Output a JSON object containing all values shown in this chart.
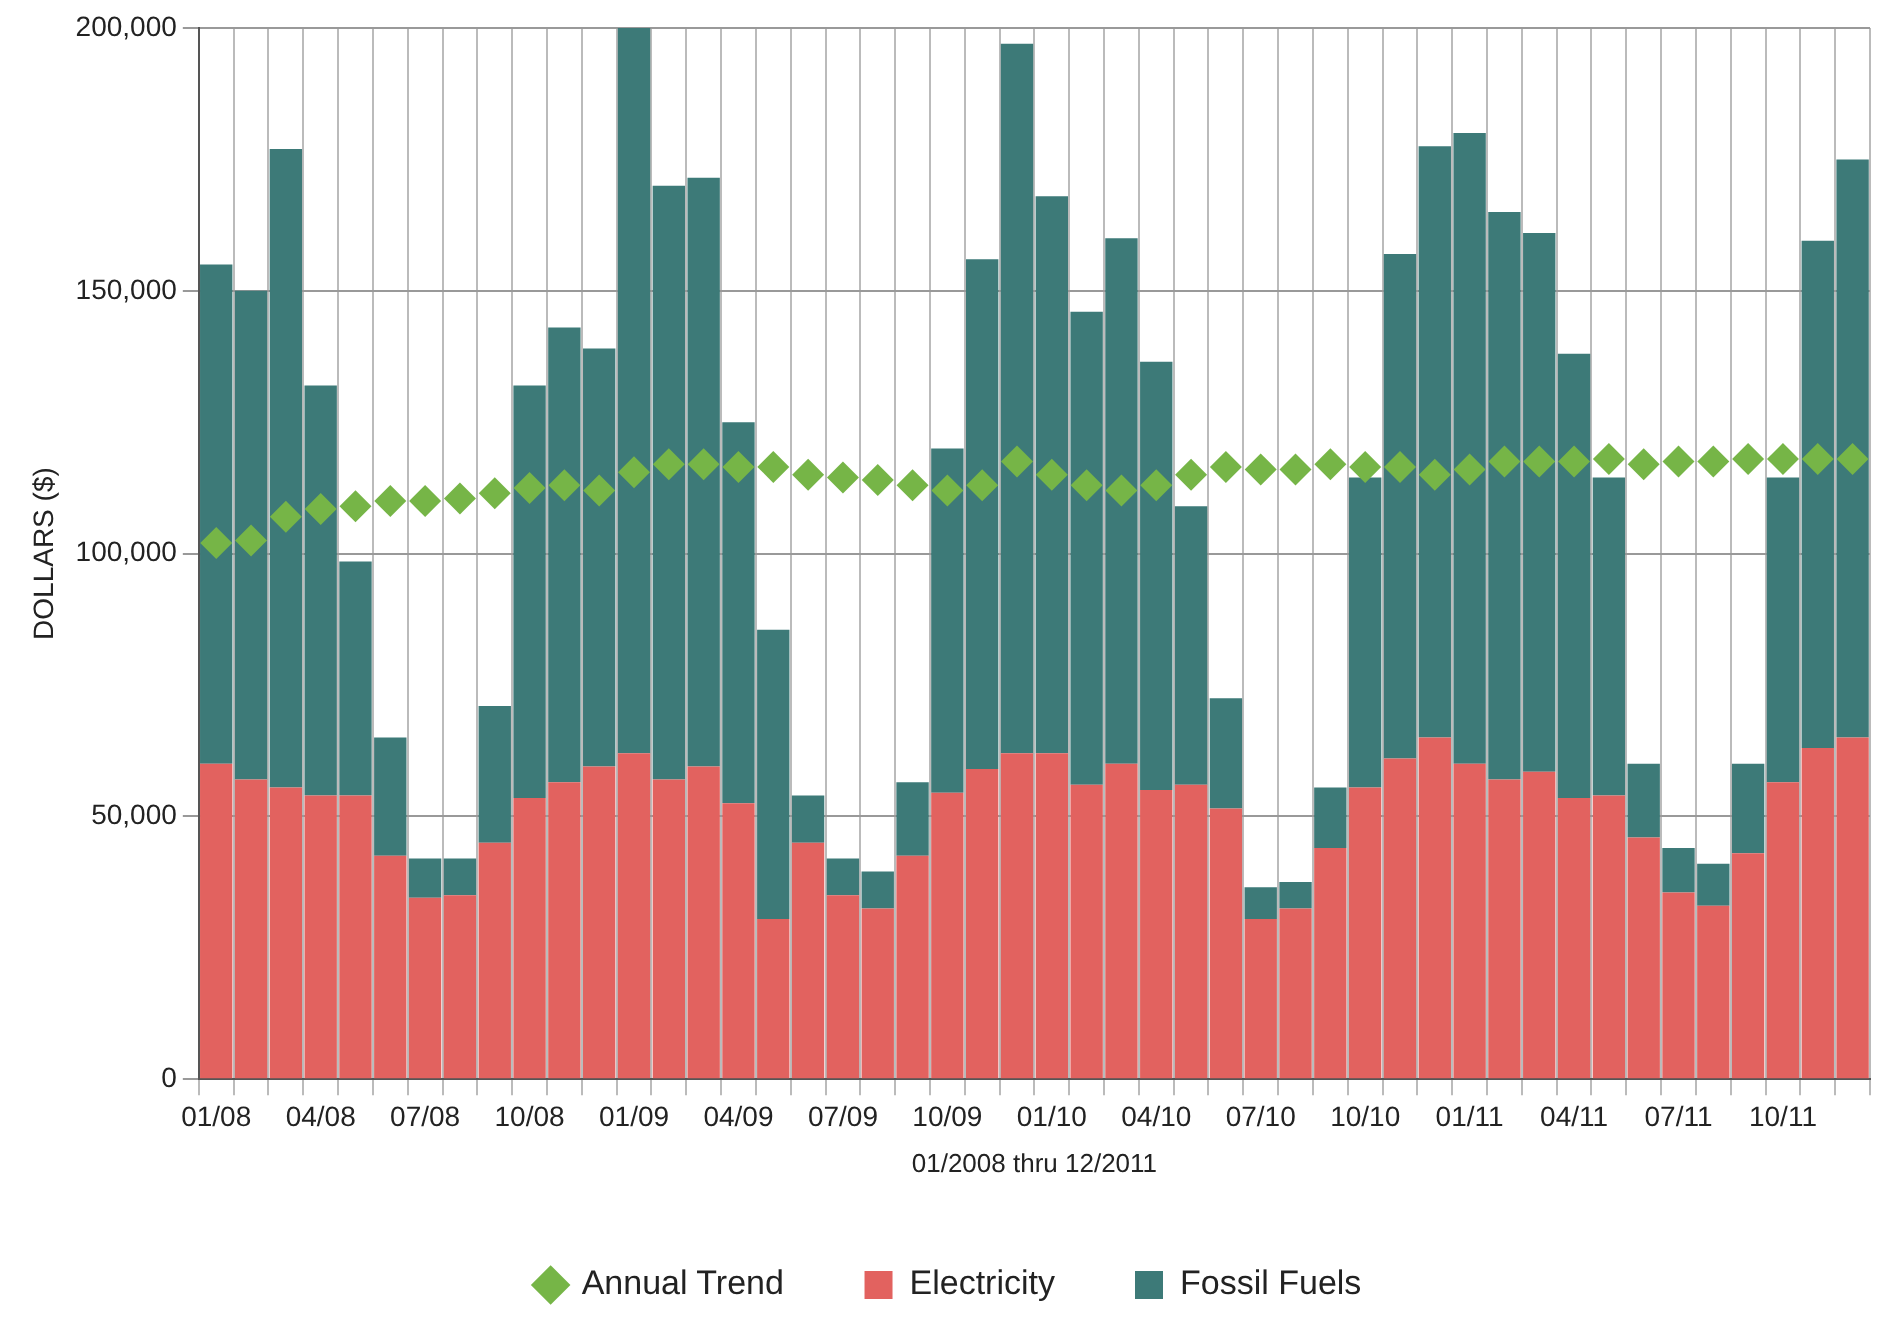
{
  "chart_data": {
    "type": "bar",
    "stacked": true,
    "xlabel": "01/2008 thru 12/2011",
    "ylabel": "DOLLARS ($)",
    "categories": [
      "01/08",
      null,
      null,
      "04/08",
      null,
      null,
      "07/08",
      null,
      null,
      "10/08",
      null,
      null,
      "01/09",
      null,
      null,
      "04/09",
      null,
      null,
      "07/09",
      null,
      null,
      "10/09",
      null,
      null,
      "01/10",
      null,
      null,
      "04/10",
      null,
      null,
      "07/10",
      null,
      null,
      "10/10",
      null,
      null,
      "01/11",
      null,
      null,
      "04/11",
      null,
      null,
      "07/11",
      null,
      null,
      "10/11",
      null,
      null
    ],
    "series": [
      {
        "name": "Electricity",
        "color": "#e2625f",
        "values": [
          60000,
          57000,
          55500,
          54000,
          54000,
          42500,
          34500,
          35000,
          45000,
          53500,
          56500,
          59500,
          62000,
          57000,
          59500,
          52500,
          30500,
          45000,
          35000,
          32500,
          42500,
          54500,
          59000,
          62000,
          62000,
          56000,
          60000,
          55000,
          56000,
          51500,
          30500,
          32500,
          44000,
          55500,
          61000,
          65000,
          60000,
          57000,
          58500,
          53500,
          54000,
          46000,
          35500,
          33000,
          43000,
          56500,
          63000,
          65000
        ]
      },
      {
        "name": "Fossil Fuels",
        "color": "#3d7a78",
        "values": [
          95000,
          93000,
          121500,
          78000,
          44500,
          22500,
          7500,
          7000,
          26000,
          78500,
          86500,
          79500,
          138000,
          113000,
          112000,
          72500,
          55000,
          9000,
          7000,
          7000,
          14000,
          65500,
          97000,
          135000,
          106000,
          90000,
          100000,
          81500,
          53000,
          21000,
          6000,
          5000,
          11500,
          59000,
          96000,
          112500,
          120000,
          108000,
          102500,
          84500,
          60500,
          14000,
          8500,
          8000,
          17000,
          58000,
          96500,
          110000
        ]
      },
      {
        "name": "Annual Trend",
        "type": "scatter",
        "color": "#76b547",
        "values": [
          102000,
          102500,
          107000,
          108500,
          109000,
          110000,
          110000,
          110500,
          111500,
          112500,
          113000,
          112000,
          115500,
          117000,
          117000,
          116500,
          116500,
          115000,
          114500,
          114000,
          113000,
          112000,
          113000,
          117500,
          115000,
          113000,
          112000,
          113000,
          115000,
          116500,
          116000,
          116000,
          117000,
          116500,
          116500,
          115000,
          116000,
          117500,
          117500,
          117500,
          118000,
          117000,
          117500,
          117500,
          118000,
          118000,
          118000,
          118000
        ]
      }
    ],
    "marker": "diamond",
    "ylim": [
      0,
      200000
    ],
    "yticks": [
      0,
      {
        "value": 50000,
        "label": "50,000"
      },
      {
        "value": 100000,
        "label": "100,000"
      },
      {
        "value": 150000,
        "label": "150,000"
      },
      {
        "value": 200000,
        "label": "200,000"
      }
    ],
    "grid": true,
    "legend": "bottom"
  }
}
